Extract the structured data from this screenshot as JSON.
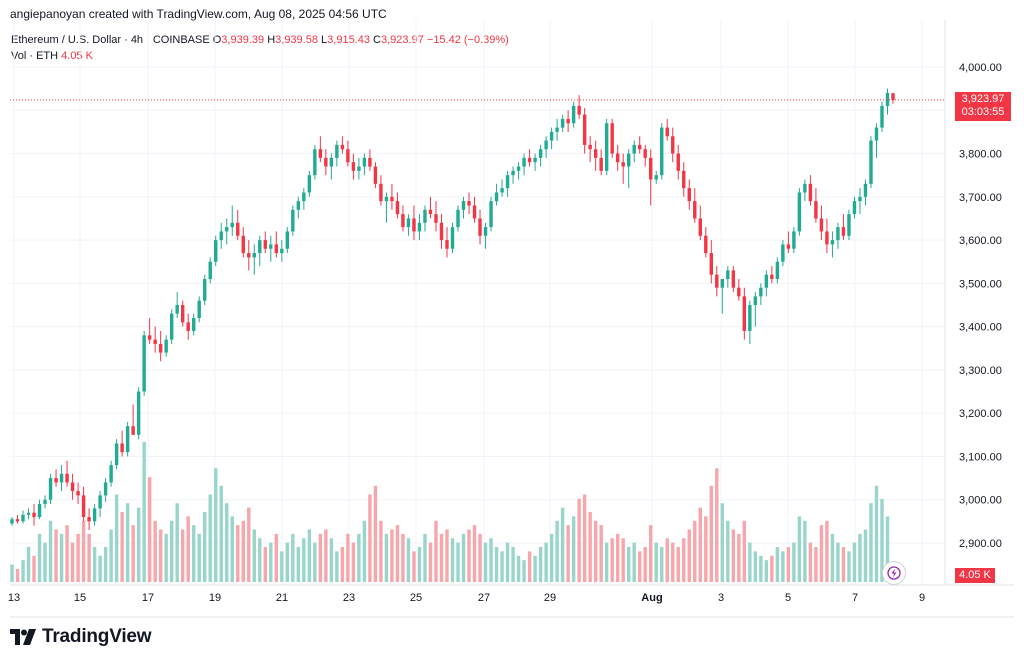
{
  "credit": "angiepanoyan created with TradingView.com, Aug 08, 2025 04:56 UTC",
  "header": {
    "symbol": "Ethereum / U.S. Dollar · 4h · COINBASE",
    "o_label": "O",
    "o_value": "3,939.39",
    "h_label": "H",
    "h_value": "3,939.58",
    "l_label": "L",
    "l_value": "3,915.43",
    "c_label": "C",
    "c_value": "3,923.97",
    "change": "−15.42 (−0.39%)",
    "vol_label": "Vol · ETH",
    "vol_value": "4.05 K"
  },
  "price_tag": {
    "price": "3,923.97",
    "countdown": "03:03:55"
  },
  "volume_tag": "4.05 K",
  "brand": "TradingView",
  "icons": {
    "logo": "tradingview-logo-icon",
    "flash": "lightning-icon"
  },
  "colors": {
    "up": "#22ab94",
    "down": "#f23645",
    "vol_up": "#99d5cb",
    "vol_down": "#f7a7ac",
    "price_line": "#f23645"
  },
  "chart_data": {
    "type": "candlestick",
    "symbol": "ETH/USD",
    "interval": "4h",
    "y_axis": {
      "range": [
        2830,
        4030
      ],
      "ticks": [
        2900,
        3000,
        3100,
        3200,
        3300,
        3400,
        3500,
        3600,
        3700,
        3800,
        3900,
        4000
      ],
      "tick_labels": [
        "2,900.00",
        "3,000.00",
        "3,100.00",
        "3,200.00",
        "3,300.00",
        "3,400.00",
        "3,500.00",
        "3,600.00",
        "3,700.00",
        "3,800.00",
        "3,900.00",
        "4,000.00"
      ]
    },
    "x_axis": {
      "tick_labels": [
        "13",
        "15",
        "17",
        "19",
        "21",
        "23",
        "25",
        "27",
        "29",
        "Aug",
        "3",
        "5",
        "7",
        "9"
      ]
    },
    "last_price": 3923.97,
    "candles_ohlcv": [
      [
        2945,
        2960,
        2940,
        2955,
        20
      ],
      [
        2955,
        2965,
        2945,
        2950,
        15
      ],
      [
        2950,
        2975,
        2945,
        2965,
        25
      ],
      [
        2965,
        2980,
        2955,
        2970,
        40
      ],
      [
        2970,
        2990,
        2940,
        2960,
        30
      ],
      [
        2960,
        3000,
        2955,
        2990,
        55
      ],
      [
        2990,
        3010,
        2980,
        3000,
        45
      ],
      [
        3000,
        3060,
        2990,
        3050,
        70
      ],
      [
        3050,
        3070,
        3030,
        3040,
        60
      ],
      [
        3040,
        3080,
        3020,
        3060,
        55
      ],
      [
        3060,
        3090,
        3030,
        3040,
        65
      ],
      [
        3040,
        3060,
        3000,
        3020,
        45
      ],
      [
        3020,
        3040,
        2990,
        3010,
        55
      ],
      [
        3010,
        3030,
        2950,
        2960,
        70
      ],
      [
        2960,
        2980,
        2930,
        2950,
        55
      ],
      [
        2950,
        2990,
        2940,
        2980,
        40
      ],
      [
        2980,
        3020,
        2960,
        3010,
        30
      ],
      [
        3010,
        3050,
        2995,
        3040,
        40
      ],
      [
        3040,
        3090,
        3030,
        3080,
        60
      ],
      [
        3080,
        3140,
        3070,
        3130,
        100
      ],
      [
        3130,
        3160,
        3100,
        3110,
        80
      ],
      [
        3110,
        3180,
        3100,
        3170,
        90
      ],
      [
        3170,
        3220,
        3150,
        3150,
        65
      ],
      [
        3150,
        3260,
        3140,
        3250,
        85
      ],
      [
        3250,
        3390,
        3240,
        3380,
        160
      ],
      [
        3380,
        3420,
        3360,
        3370,
        120
      ],
      [
        3370,
        3400,
        3340,
        3360,
        70
      ],
      [
        3360,
        3390,
        3320,
        3340,
        60
      ],
      [
        3340,
        3380,
        3330,
        3370,
        55
      ],
      [
        3370,
        3440,
        3360,
        3430,
        70
      ],
      [
        3430,
        3480,
        3420,
        3450,
        90
      ],
      [
        3450,
        3460,
        3400,
        3410,
        60
      ],
      [
        3410,
        3430,
        3370,
        3390,
        75
      ],
      [
        3390,
        3430,
        3380,
        3420,
        65
      ],
      [
        3420,
        3470,
        3410,
        3460,
        55
      ],
      [
        3460,
        3520,
        3450,
        3510,
        80
      ],
      [
        3510,
        3560,
        3500,
        3550,
        100
      ],
      [
        3550,
        3610,
        3540,
        3600,
        130
      ],
      [
        3600,
        3640,
        3580,
        3620,
        110
      ],
      [
        3620,
        3650,
        3590,
        3630,
        90
      ],
      [
        3630,
        3680,
        3610,
        3640,
        75
      ],
      [
        3640,
        3670,
        3600,
        3610,
        65
      ],
      [
        3610,
        3630,
        3560,
        3570,
        70
      ],
      [
        3570,
        3600,
        3530,
        3560,
        85
      ],
      [
        3560,
        3590,
        3520,
        3570,
        60
      ],
      [
        3570,
        3610,
        3540,
        3600,
        50
      ],
      [
        3600,
        3620,
        3570,
        3580,
        40
      ],
      [
        3580,
        3610,
        3550,
        3590,
        45
      ],
      [
        3590,
        3620,
        3560,
        3570,
        55
      ],
      [
        3570,
        3600,
        3550,
        3580,
        35
      ],
      [
        3580,
        3630,
        3570,
        3620,
        45
      ],
      [
        3620,
        3680,
        3610,
        3670,
        55
      ],
      [
        3670,
        3700,
        3650,
        3690,
        40
      ],
      [
        3690,
        3720,
        3670,
        3710,
        50
      ],
      [
        3710,
        3760,
        3700,
        3750,
        60
      ],
      [
        3750,
        3820,
        3740,
        3810,
        45
      ],
      [
        3810,
        3840,
        3780,
        3790,
        55
      ],
      [
        3790,
        3810,
        3750,
        3770,
        60
      ],
      [
        3770,
        3800,
        3740,
        3790,
        50
      ],
      [
        3790,
        3830,
        3770,
        3820,
        35
      ],
      [
        3820,
        3840,
        3800,
        3810,
        40
      ],
      [
        3810,
        3830,
        3770,
        3780,
        55
      ],
      [
        3780,
        3800,
        3740,
        3760,
        45
      ],
      [
        3760,
        3790,
        3740,
        3770,
        55
      ],
      [
        3770,
        3800,
        3750,
        3790,
        70
      ],
      [
        3790,
        3810,
        3760,
        3770,
        100
      ],
      [
        3770,
        3780,
        3720,
        3730,
        110
      ],
      [
        3730,
        3750,
        3680,
        3690,
        70
      ],
      [
        3690,
        3710,
        3640,
        3700,
        55
      ],
      [
        3700,
        3730,
        3670,
        3690,
        60
      ],
      [
        3690,
        3710,
        3650,
        3660,
        65
      ],
      [
        3660,
        3680,
        3620,
        3630,
        55
      ],
      [
        3630,
        3660,
        3610,
        3650,
        50
      ],
      [
        3650,
        3680,
        3600,
        3620,
        35
      ],
      [
        3620,
        3660,
        3600,
        3640,
        40
      ],
      [
        3640,
        3680,
        3620,
        3670,
        55
      ],
      [
        3670,
        3700,
        3650,
        3660,
        45
      ],
      [
        3660,
        3690,
        3620,
        3640,
        70
      ],
      [
        3640,
        3660,
        3580,
        3600,
        55
      ],
      [
        3600,
        3630,
        3560,
        3580,
        60
      ],
      [
        3580,
        3640,
        3570,
        3630,
        50
      ],
      [
        3630,
        3680,
        3620,
        3670,
        45
      ],
      [
        3670,
        3700,
        3650,
        3690,
        55
      ],
      [
        3690,
        3710,
        3660,
        3680,
        60
      ],
      [
        3680,
        3700,
        3640,
        3650,
        65
      ],
      [
        3650,
        3670,
        3590,
        3610,
        55
      ],
      [
        3610,
        3640,
        3580,
        3630,
        45
      ],
      [
        3630,
        3700,
        3620,
        3690,
        50
      ],
      [
        3690,
        3730,
        3680,
        3710,
        40
      ],
      [
        3710,
        3740,
        3700,
        3720,
        35
      ],
      [
        3720,
        3760,
        3700,
        3750,
        45
      ],
      [
        3750,
        3770,
        3730,
        3760,
        40
      ],
      [
        3760,
        3780,
        3740,
        3770,
        30
      ],
      [
        3770,
        3800,
        3750,
        3790,
        25
      ],
      [
        3790,
        3810,
        3770,
        3780,
        35
      ],
      [
        3780,
        3800,
        3760,
        3790,
        30
      ],
      [
        3790,
        3820,
        3770,
        3810,
        40
      ],
      [
        3810,
        3840,
        3790,
        3830,
        45
      ],
      [
        3830,
        3860,
        3810,
        3850,
        55
      ],
      [
        3850,
        3880,
        3830,
        3860,
        70
      ],
      [
        3860,
        3890,
        3850,
        3880,
        85
      ],
      [
        3880,
        3900,
        3850,
        3870,
        65
      ],
      [
        3870,
        3920,
        3860,
        3910,
        75
      ],
      [
        3910,
        3935,
        3880,
        3890,
        95
      ],
      [
        3890,
        3905,
        3800,
        3820,
        100
      ],
      [
        3820,
        3840,
        3780,
        3810,
        80
      ],
      [
        3810,
        3830,
        3760,
        3790,
        70
      ],
      [
        3790,
        3810,
        3750,
        3760,
        65
      ],
      [
        3760,
        3880,
        3750,
        3870,
        45
      ],
      [
        3870,
        3880,
        3790,
        3800,
        50
      ],
      [
        3800,
        3820,
        3760,
        3780,
        55
      ],
      [
        3780,
        3800,
        3730,
        3770,
        50
      ],
      [
        3770,
        3810,
        3720,
        3800,
        40
      ],
      [
        3800,
        3830,
        3780,
        3820,
        45
      ],
      [
        3820,
        3840,
        3800,
        3810,
        35
      ],
      [
        3810,
        3820,
        3770,
        3790,
        40
      ],
      [
        3790,
        3810,
        3680,
        3740,
        65
      ],
      [
        3740,
        3760,
        3730,
        3750,
        45
      ],
      [
        3750,
        3870,
        3740,
        3860,
        40
      ],
      [
        3860,
        3880,
        3830,
        3840,
        50
      ],
      [
        3840,
        3860,
        3780,
        3800,
        45
      ],
      [
        3800,
        3820,
        3740,
        3760,
        40
      ],
      [
        3760,
        3780,
        3700,
        3720,
        50
      ],
      [
        3720,
        3740,
        3670,
        3690,
        60
      ],
      [
        3690,
        3720,
        3640,
        3650,
        70
      ],
      [
        3650,
        3680,
        3600,
        3610,
        85
      ],
      [
        3610,
        3630,
        3560,
        3570,
        75
      ],
      [
        3570,
        3600,
        3500,
        3520,
        110
      ],
      [
        3520,
        3540,
        3470,
        3490,
        130
      ],
      [
        3490,
        3510,
        3430,
        3510,
        90
      ],
      [
        3510,
        3540,
        3490,
        3530,
        70
      ],
      [
        3530,
        3540,
        3480,
        3490,
        60
      ],
      [
        3490,
        3510,
        3460,
        3470,
        55
      ],
      [
        3470,
        3490,
        3370,
        3390,
        70
      ],
      [
        3390,
        3460,
        3360,
        3450,
        45
      ],
      [
        3450,
        3480,
        3400,
        3470,
        35
      ],
      [
        3470,
        3500,
        3450,
        3490,
        30
      ],
      [
        3490,
        3530,
        3470,
        3520,
        25
      ],
      [
        3520,
        3540,
        3500,
        3510,
        30
      ],
      [
        3510,
        3560,
        3500,
        3550,
        40
      ],
      [
        3550,
        3600,
        3540,
        3590,
        35
      ],
      [
        3590,
        3620,
        3570,
        3580,
        40
      ],
      [
        3580,
        3630,
        3570,
        3620,
        45
      ],
      [
        3620,
        3720,
        3610,
        3710,
        75
      ],
      [
        3710,
        3740,
        3690,
        3730,
        70
      ],
      [
        3730,
        3750,
        3680,
        3690,
        45
      ],
      [
        3690,
        3720,
        3640,
        3650,
        40
      ],
      [
        3650,
        3680,
        3600,
        3620,
        65
      ],
      [
        3620,
        3650,
        3570,
        3590,
        70
      ],
      [
        3590,
        3620,
        3560,
        3600,
        55
      ],
      [
        3600,
        3640,
        3580,
        3630,
        45
      ],
      [
        3630,
        3660,
        3600,
        3610,
        40
      ],
      [
        3610,
        3670,
        3600,
        3660,
        35
      ],
      [
        3660,
        3700,
        3650,
        3690,
        45
      ],
      [
        3690,
        3720,
        3660,
        3700,
        55
      ],
      [
        3700,
        3740,
        3680,
        3730,
        60
      ],
      [
        3730,
        3840,
        3720,
        3830,
        90
      ],
      [
        3830,
        3870,
        3790,
        3860,
        110
      ],
      [
        3860,
        3920,
        3850,
        3910,
        95
      ],
      [
        3910,
        3950,
        3890,
        3940,
        75
      ],
      [
        3939.39,
        3939.58,
        3915.43,
        3923.97,
        12
      ]
    ]
  }
}
